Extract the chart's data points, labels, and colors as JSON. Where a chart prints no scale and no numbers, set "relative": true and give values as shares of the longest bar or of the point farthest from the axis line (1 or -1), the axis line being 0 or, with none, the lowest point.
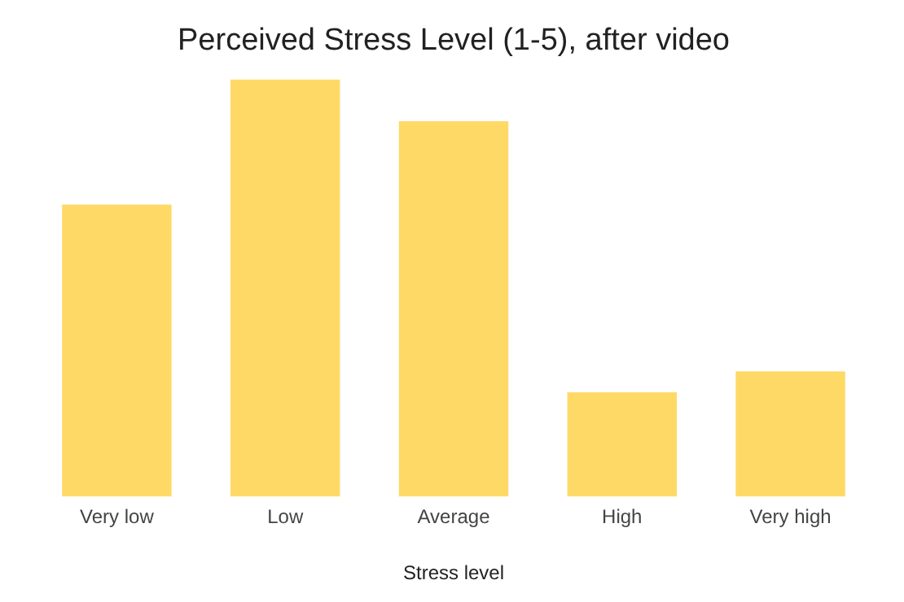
{
  "chart_data": {
    "type": "bar",
    "title": "Perceived Stress Level (1-5), after video",
    "xlabel": "Stress level",
    "categories": [
      "Very low",
      "Low",
      "Average",
      "High",
      "Very high"
    ],
    "values": [
      0.7,
      1,
      0.9,
      0.25,
      0.3
    ],
    "color": "#ffd966",
    "relative": true,
    "grid": false,
    "legend": false
  }
}
